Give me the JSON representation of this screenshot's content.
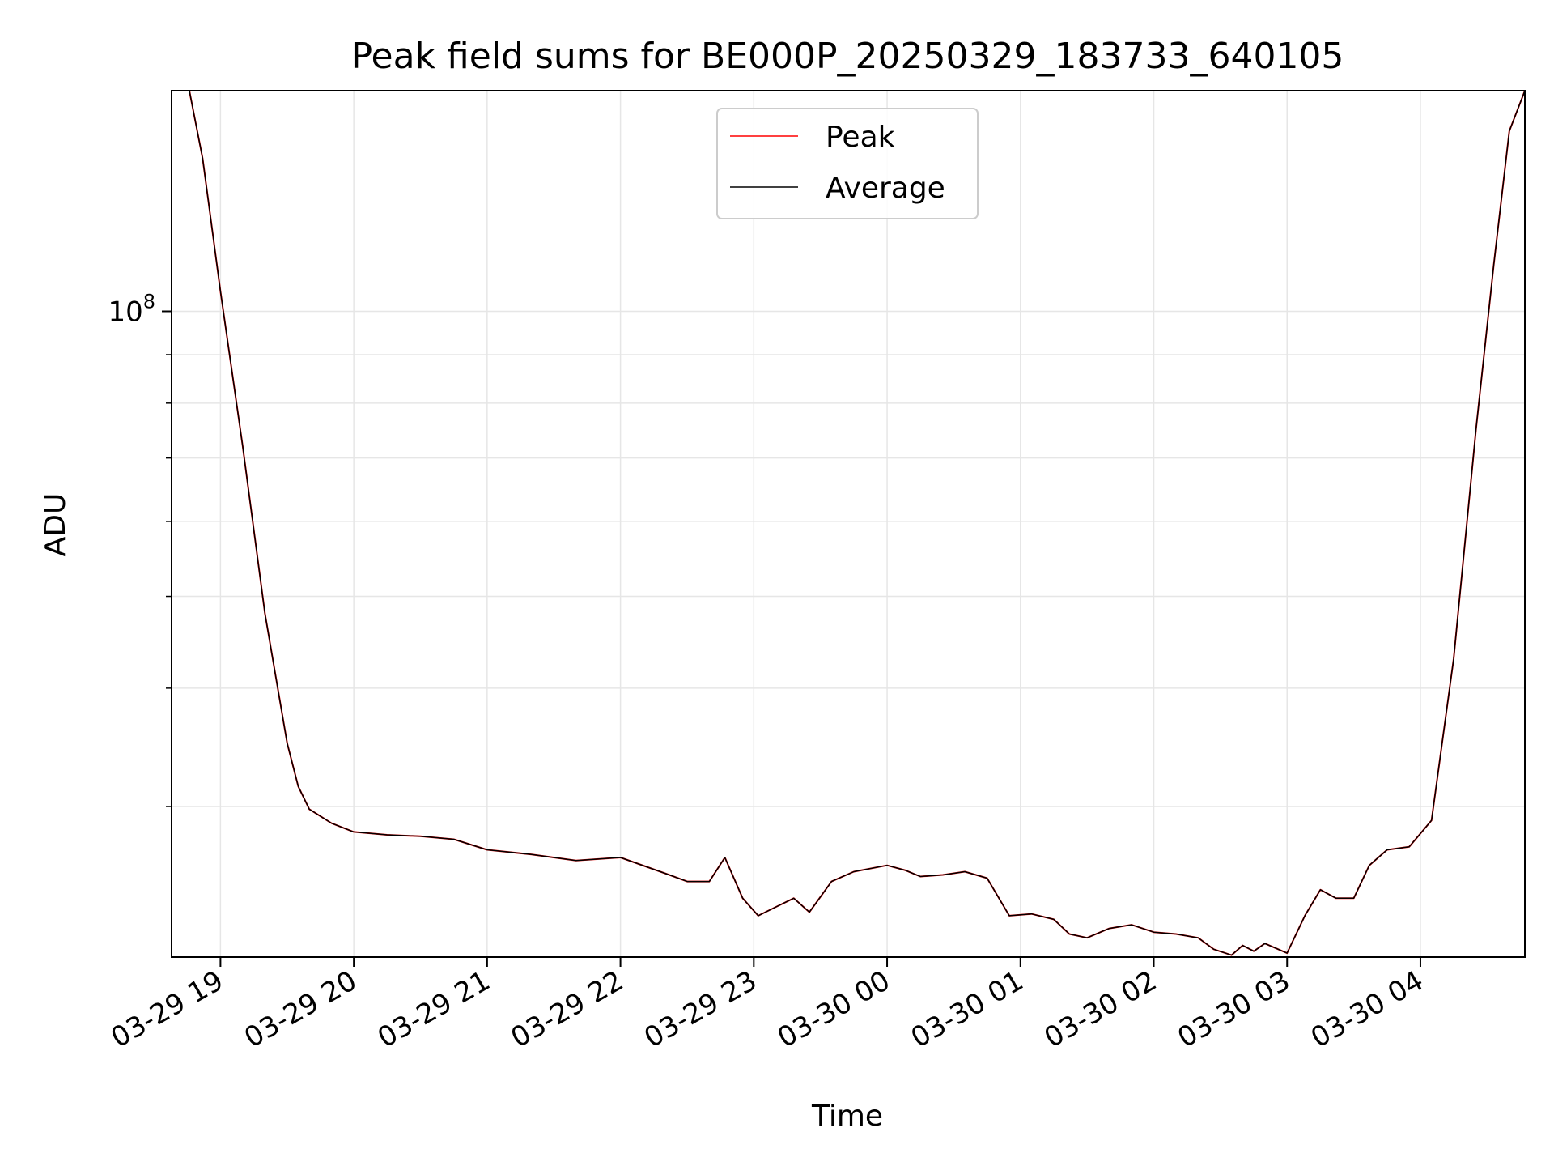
{
  "chart_data": {
    "type": "line",
    "title": "Peak field sums for BE000P_20250329_183733_640105",
    "xlabel": "Time",
    "ylabel": "ADU",
    "y_scale": "log",
    "ylim": [
      20800000,
      171000000
    ],
    "xlim": [
      "03-29 18:38",
      "03-30 04:47"
    ],
    "grid": true,
    "legend_position": "upper center",
    "x_tick_labels": [
      "03-29 19",
      "03-29 20",
      "03-29 21",
      "03-29 22",
      "03-29 23",
      "03-30 00",
      "03-30 01",
      "03-30 02",
      "03-30 03",
      "03-30 04"
    ],
    "x_ticks": [
      "03-29 19:00",
      "03-29 20:00",
      "03-29 21:00",
      "03-29 22:00",
      "03-29 23:00",
      "03-30 00:00",
      "03-30 01:00",
      "03-30 02:00",
      "03-30 03:00",
      "03-30 04:00"
    ],
    "y_major_tick_label": {
      "base": "10",
      "exponent": "8"
    },
    "y_major_tick": 100000000,
    "y_minor_ticks": [
      30000000,
      40000000,
      50000000,
      60000000,
      70000000,
      80000000,
      90000000
    ],
    "series": [
      {
        "name": "Peak",
        "color": "#ff0000",
        "x": [
          "03-29 18:38",
          "03-29 18:46",
          "03-29 18:52",
          "03-29 19:00",
          "03-29 19:10",
          "03-29 19:20",
          "03-29 19:30",
          "03-29 19:35",
          "03-29 19:40",
          "03-29 19:50",
          "03-29 20:00",
          "03-29 20:15",
          "03-29 20:30",
          "03-29 20:45",
          "03-29 21:00",
          "03-29 21:20",
          "03-29 21:40",
          "03-29 22:00",
          "03-29 22:20",
          "03-29 22:30",
          "03-29 22:40",
          "03-29 22:47",
          "03-29 22:55",
          "03-29 23:02",
          "03-29 23:10",
          "03-29 23:18",
          "03-29 23:25",
          "03-29 23:35",
          "03-29 23:45",
          "03-30 00:00",
          "03-30 00:08",
          "03-30 00:15",
          "03-30 00:25",
          "03-30 00:35",
          "03-30 00:45",
          "03-30 00:55",
          "03-30 01:05",
          "03-30 01:15",
          "03-30 01:22",
          "03-30 01:30",
          "03-30 01:40",
          "03-30 01:50",
          "03-30 02:00",
          "03-30 02:10",
          "03-30 02:20",
          "03-30 02:27",
          "03-30 02:35",
          "03-30 02:40",
          "03-30 02:45",
          "03-30 02:50",
          "03-30 03:00",
          "03-30 03:08",
          "03-30 03:15",
          "03-30 03:22",
          "03-30 03:30",
          "03-30 03:37",
          "03-30 03:45",
          "03-30 03:55",
          "03-30 04:05",
          "03-30 04:15",
          "03-30 04:25",
          "03-30 04:33",
          "03-30 04:40",
          "03-30 04:47"
        ],
        "values": [
          171000000,
          171000000,
          145000000,
          105000000,
          72000000,
          48000000,
          35000000,
          31500000,
          29800000,
          28800000,
          28200000,
          28000000,
          27900000,
          27700000,
          27000000,
          26700000,
          26300000,
          26500000,
          25500000,
          25000000,
          25000000,
          26500000,
          24000000,
          23000000,
          23500000,
          24000000,
          23200000,
          25000000,
          25600000,
          26000000,
          25700000,
          25300000,
          25400000,
          25600000,
          25200000,
          23000000,
          23100000,
          22800000,
          22000000,
          21800000,
          22300000,
          22500000,
          22100000,
          22000000,
          21800000,
          21200000,
          20900000,
          21400000,
          21100000,
          21500000,
          21000000,
          23000000,
          24500000,
          24000000,
          24000000,
          26000000,
          27000000,
          27200000,
          29000000,
          43000000,
          75000000,
          112000000,
          155000000,
          171000000
        ]
      },
      {
        "name": "Average",
        "color": "#000000",
        "x": [
          "03-29 18:38",
          "03-29 18:46",
          "03-29 18:52",
          "03-29 19:00",
          "03-29 19:10",
          "03-29 19:20",
          "03-29 19:30",
          "03-29 19:35",
          "03-29 19:40",
          "03-29 19:50",
          "03-29 20:00",
          "03-29 20:15",
          "03-29 20:30",
          "03-29 20:45",
          "03-29 21:00",
          "03-29 21:20",
          "03-29 21:40",
          "03-29 22:00",
          "03-29 22:20",
          "03-29 22:30",
          "03-29 22:40",
          "03-29 22:47",
          "03-29 22:55",
          "03-29 23:02",
          "03-29 23:10",
          "03-29 23:18",
          "03-29 23:25",
          "03-29 23:35",
          "03-29 23:45",
          "03-30 00:00",
          "03-30 00:08",
          "03-30 00:15",
          "03-30 00:25",
          "03-30 00:35",
          "03-30 00:45",
          "03-30 00:55",
          "03-30 01:05",
          "03-30 01:15",
          "03-30 01:22",
          "03-30 01:30",
          "03-30 01:40",
          "03-30 01:50",
          "03-30 02:00",
          "03-30 02:10",
          "03-30 02:20",
          "03-30 02:27",
          "03-30 02:35",
          "03-30 02:40",
          "03-30 02:45",
          "03-30 02:50",
          "03-30 03:00",
          "03-30 03:08",
          "03-30 03:15",
          "03-30 03:22",
          "03-30 03:30",
          "03-30 03:37",
          "03-30 03:45",
          "03-30 03:55",
          "03-30 04:05",
          "03-30 04:15",
          "03-30 04:25",
          "03-30 04:33",
          "03-30 04:40",
          "03-30 04:47"
        ],
        "values": [
          171000000,
          171000000,
          145000000,
          105000000,
          72000000,
          48000000,
          35000000,
          31500000,
          29800000,
          28800000,
          28200000,
          28000000,
          27900000,
          27700000,
          27000000,
          26700000,
          26300000,
          26500000,
          25500000,
          25000000,
          25000000,
          26500000,
          24000000,
          23000000,
          23500000,
          24000000,
          23200000,
          25000000,
          25600000,
          26000000,
          25700000,
          25300000,
          25400000,
          25600000,
          25200000,
          23000000,
          23100000,
          22800000,
          22000000,
          21800000,
          22300000,
          22500000,
          22100000,
          22000000,
          21800000,
          21200000,
          20900000,
          21400000,
          21100000,
          21500000,
          21000000,
          23000000,
          24500000,
          24000000,
          24000000,
          26000000,
          27000000,
          27200000,
          29000000,
          43000000,
          75000000,
          112000000,
          155000000,
          171000000
        ]
      }
    ]
  }
}
